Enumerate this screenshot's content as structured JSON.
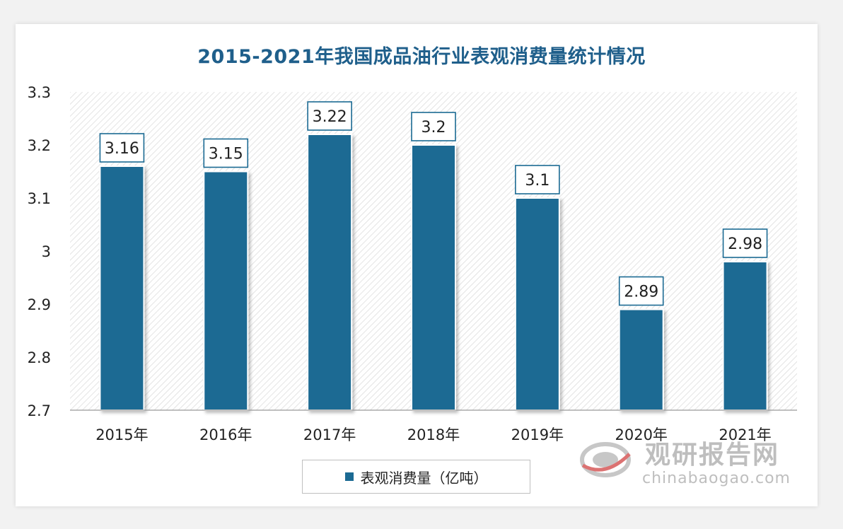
{
  "title": "2015-2021年我国成品油行业表观消费量统计情况",
  "chart_data": {
    "type": "bar",
    "categories": [
      "2015年",
      "2016年",
      "2017年",
      "2018年",
      "2019年",
      "2020年",
      "2021年"
    ],
    "series": [
      {
        "name": "表观消费量（亿吨）",
        "values": [
          3.16,
          3.15,
          3.22,
          3.2,
          3.1,
          2.89,
          2.98
        ],
        "labels": [
          "3.16",
          "3.15",
          "3.22",
          "3.2",
          "3.1",
          "2.89",
          "2.98"
        ]
      }
    ],
    "ylim": [
      2.7,
      3.3
    ],
    "yticks": [
      2.7,
      2.8,
      2.9,
      3.0,
      3.1,
      3.2,
      3.3
    ],
    "ytick_labels": [
      "2.7",
      "2.8",
      "2.9",
      "3",
      "3.1",
      "3.2",
      "3.3"
    ],
    "bar_color": "#1b6a93",
    "grid": false,
    "legend_position": "bottom"
  },
  "watermark": {
    "brand": "观研报告网",
    "url": "chinabaogao.com"
  }
}
